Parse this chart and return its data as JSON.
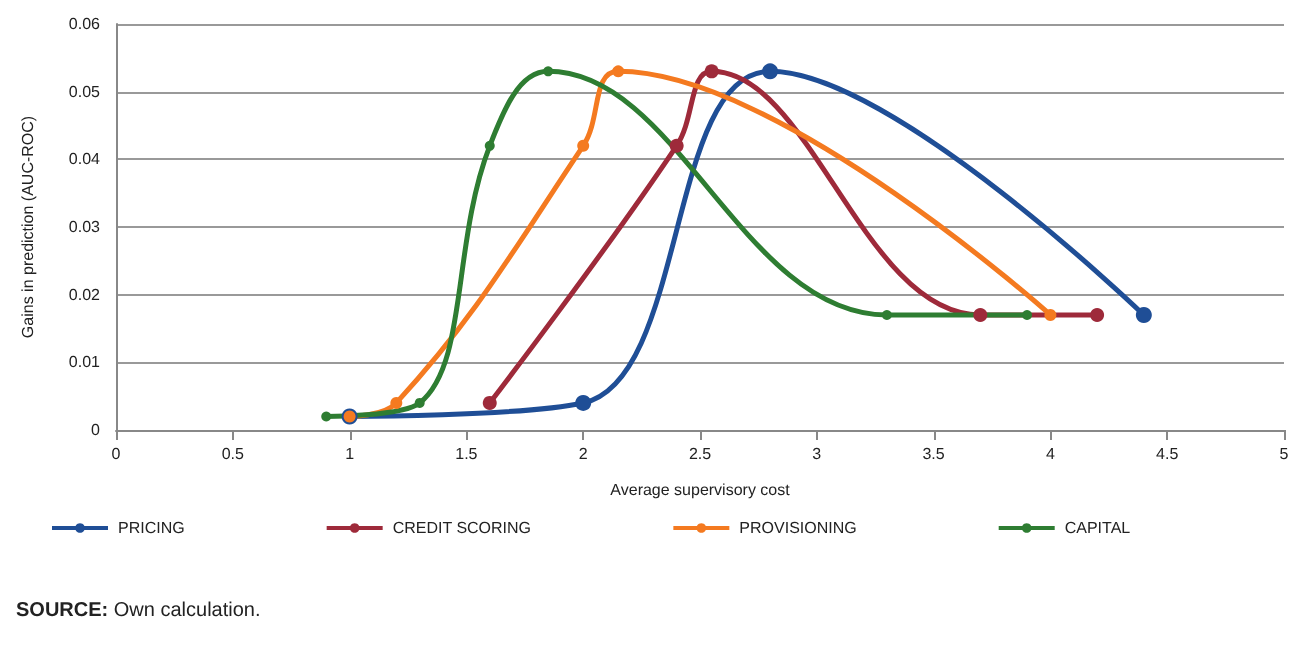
{
  "chart_data": {
    "type": "line",
    "xlabel": "Average supervisory cost",
    "ylabel": "Gains in prediction (AUC-ROC)",
    "xlim": [
      0,
      5
    ],
    "xticks": [
      0,
      0.5,
      1,
      1.5,
      2,
      2.5,
      3,
      3.5,
      4,
      4.5,
      5
    ],
    "ylim": [
      0,
      0.06
    ],
    "yticks": [
      0,
      0.01,
      0.02,
      0.03,
      0.04,
      0.05,
      0.06
    ],
    "grid": "y",
    "legend": "bottom",
    "marker": "circle",
    "line_style": "solid",
    "series": [
      {
        "name": "PRICING",
        "color": "#1f4e96",
        "x": [
          1,
          2,
          2.8,
          4.4
        ],
        "values": [
          0.002,
          0.004,
          0.053,
          0.017
        ]
      },
      {
        "name": "CREDIT SCORING",
        "color": "#9e2a3a",
        "x": [
          1.6,
          2.4,
          2.55,
          3.7,
          4.2
        ],
        "values": [
          0.004,
          0.042,
          0.053,
          0.017,
          0.017
        ]
      },
      {
        "name": "PROVISIONING",
        "color": "#f47a20",
        "x": [
          1,
          1.2,
          2,
          2.15,
          4
        ],
        "values": [
          0.002,
          0.004,
          0.042,
          0.053,
          0.017
        ]
      },
      {
        "name": "CAPITAL",
        "color": "#2e7d32",
        "x": [
          0.9,
          1.3,
          1.6,
          1.85,
          3.3,
          3.9
        ],
        "values": [
          0.002,
          0.004,
          0.042,
          0.053,
          0.017,
          0.017
        ]
      }
    ],
    "annotations": [
      "SOURCE: Own calculation."
    ]
  }
}
